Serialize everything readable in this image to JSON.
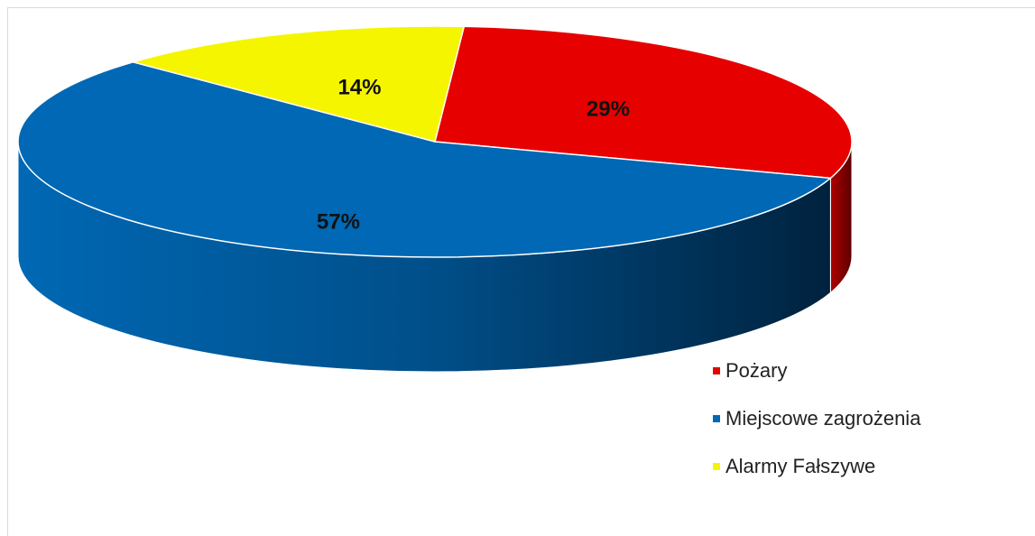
{
  "chart_data": {
    "type": "pie",
    "categories": [
      "Pożary",
      "Miejscowe zagrożenia",
      "Alarmy Fałszywe"
    ],
    "values": [
      29,
      57,
      14
    ],
    "value_labels": [
      "29%",
      "57%",
      "14%"
    ],
    "colors": [
      "#e60000",
      "#0068b4",
      "#f5f500"
    ],
    "legend": "bottom-right"
  }
}
